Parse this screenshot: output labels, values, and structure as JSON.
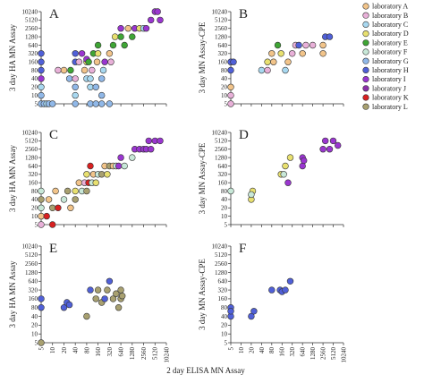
{
  "figure": {
    "x_axis_label": "2 day ELISA MN Assay"
  },
  "axis": {
    "y_ticks": [
      "5",
      "10",
      "20",
      "40",
      "80",
      "160",
      "320",
      "640",
      "1280",
      "2560",
      "5120",
      "10240"
    ],
    "x_ticks": [
      "5",
      "10",
      "20",
      "40",
      "80",
      "160",
      "320",
      "640",
      "1280",
      "2560",
      "5120",
      "10240"
    ]
  },
  "legend": {
    "entries": [
      {
        "label": "laboratory A",
        "color": "#f2c48a"
      },
      {
        "label": "laboratory B",
        "color": "#e8b0d8"
      },
      {
        "label": "laboratory C",
        "color": "#a8d8f0"
      },
      {
        "label": "laboratory D",
        "color": "#e8e070"
      },
      {
        "label": "laboratory E",
        "color": "#3fa535"
      },
      {
        "label": "laboratory F",
        "color": "#c8e8d8"
      },
      {
        "label": "laboratory G",
        "color": "#90b8e8"
      },
      {
        "label": "laboratory H",
        "color": "#5060d8"
      },
      {
        "label": "laboratory I",
        "color": "#9a36d0"
      },
      {
        "label": "laboratory J",
        "color": "#8a2fa8"
      },
      {
        "label": "laboratory K",
        "color": "#d82020"
      },
      {
        "label": "laboratory L",
        "color": "#a8a070"
      }
    ]
  },
  "chart_data": [
    {
      "type": "scatter",
      "panel": "A",
      "ylabel": "3 day HA MN Assay",
      "xlim": [
        "5",
        "10240"
      ],
      "ylim": [
        "5",
        "10240"
      ],
      "scale": "log2",
      "points": [
        {
          "x": 5,
          "y": 5,
          "c": "#90b8e8"
        },
        {
          "x": 5,
          "y": 10,
          "c": "#90b8e8"
        },
        {
          "x": 5,
          "y": 20,
          "c": "#a8d8f0"
        },
        {
          "x": 5,
          "y": 40,
          "c": "#9a36d0"
        },
        {
          "x": 5,
          "y": 80,
          "c": "#5060d8"
        },
        {
          "x": 5,
          "y": 160,
          "c": "#5060d8"
        },
        {
          "x": 5,
          "y": 320,
          "c": "#5060d8"
        },
        {
          "x": 6,
          "y": 5,
          "c": "#90b8e8"
        },
        {
          "x": 7,
          "y": 5,
          "c": "#a8d8f0"
        },
        {
          "x": 8,
          "y": 5,
          "c": "#90b8e8"
        },
        {
          "x": 10,
          "y": 5,
          "c": "#90b8e8"
        },
        {
          "x": 14,
          "y": 80,
          "c": "#e8b0d8"
        },
        {
          "x": 20,
          "y": 80,
          "c": "#f2c48a"
        },
        {
          "x": 28,
          "y": 40,
          "c": "#90b8e8"
        },
        {
          "x": 30,
          "y": 80,
          "c": "#3fa535"
        },
        {
          "x": 40,
          "y": 5,
          "c": "#90b8e8"
        },
        {
          "x": 40,
          "y": 10,
          "c": "#a8d8f0"
        },
        {
          "x": 40,
          "y": 20,
          "c": "#90b8e8"
        },
        {
          "x": 40,
          "y": 40,
          "c": "#e8b0d8"
        },
        {
          "x": 40,
          "y": 160,
          "c": "#5060d8"
        },
        {
          "x": 40,
          "y": 320,
          "c": "#5060d8"
        },
        {
          "x": 50,
          "y": 160,
          "c": "#e8b0d8"
        },
        {
          "x": 60,
          "y": 320,
          "c": "#9a36d0"
        },
        {
          "x": 70,
          "y": 80,
          "c": "#f2c48a"
        },
        {
          "x": 80,
          "y": 40,
          "c": "#a8d8f0"
        },
        {
          "x": 80,
          "y": 160,
          "c": "#e8e070"
        },
        {
          "x": 80,
          "y": 200,
          "c": "#9a36d0"
        },
        {
          "x": 90,
          "y": 160,
          "c": "#3fa535"
        },
        {
          "x": 100,
          "y": 5,
          "c": "#90b8e8"
        },
        {
          "x": 100,
          "y": 20,
          "c": "#a8d8f0"
        },
        {
          "x": 100,
          "y": 40,
          "c": "#a8d8f0"
        },
        {
          "x": 110,
          "y": 80,
          "c": "#e8b0d8"
        },
        {
          "x": 120,
          "y": 320,
          "c": "#3fa535"
        },
        {
          "x": 140,
          "y": 5,
          "c": "#90b8e8"
        },
        {
          "x": 140,
          "y": 20,
          "c": "#90b8e8"
        },
        {
          "x": 150,
          "y": 160,
          "c": "#f2c48a"
        },
        {
          "x": 160,
          "y": 320,
          "c": "#e8e070"
        },
        {
          "x": 160,
          "y": 640,
          "c": "#3fa535"
        },
        {
          "x": 200,
          "y": 5,
          "c": "#90b8e8"
        },
        {
          "x": 200,
          "y": 10,
          "c": "#90b8e8"
        },
        {
          "x": 200,
          "y": 40,
          "c": "#90b8e8"
        },
        {
          "x": 220,
          "y": 80,
          "c": "#a8d8f0"
        },
        {
          "x": 240,
          "y": 160,
          "c": "#9a36d0"
        },
        {
          "x": 320,
          "y": 5,
          "c": "#90b8e8"
        },
        {
          "x": 320,
          "y": 320,
          "c": "#f2c48a"
        },
        {
          "x": 350,
          "y": 160,
          "c": "#e8b0d8"
        },
        {
          "x": 400,
          "y": 640,
          "c": "#3fa535"
        },
        {
          "x": 450,
          "y": 1280,
          "c": "#e8e070"
        },
        {
          "x": 640,
          "y": 1280,
          "c": "#3fa535"
        },
        {
          "x": 640,
          "y": 2560,
          "c": "#9a36d0"
        },
        {
          "x": 800,
          "y": 640,
          "c": "#3fa535"
        },
        {
          "x": 1000,
          "y": 2560,
          "c": "#f2c48a"
        },
        {
          "x": 1280,
          "y": 1280,
          "c": "#3fa535"
        },
        {
          "x": 1500,
          "y": 2560,
          "c": "#9a36d0"
        },
        {
          "x": 2000,
          "y": 2560,
          "c": "#e8e070"
        },
        {
          "x": 2560,
          "y": 2560,
          "c": "#a8d8f0"
        },
        {
          "x": 3000,
          "y": 2560,
          "c": "#9a36d0"
        },
        {
          "x": 4000,
          "y": 5120,
          "c": "#9a36d0"
        },
        {
          "x": 5120,
          "y": 10240,
          "c": "#9a36d0"
        },
        {
          "x": 6000,
          "y": 10240,
          "c": "#9a36d0"
        },
        {
          "x": 7000,
          "y": 5120,
          "c": "#9a36d0"
        }
      ]
    },
    {
      "type": "scatter",
      "panel": "B",
      "ylabel": "3 day MN Assay-CPE",
      "xlim": [
        "5",
        "10240"
      ],
      "ylim": [
        "5",
        "10240"
      ],
      "scale": "log2",
      "points": [
        {
          "x": 5,
          "y": 5,
          "c": "#e8b0d8"
        },
        {
          "x": 5,
          "y": 10,
          "c": "#e8b0d8"
        },
        {
          "x": 5,
          "y": 20,
          "c": "#f2c48a"
        },
        {
          "x": 5,
          "y": 80,
          "c": "#5060d8"
        },
        {
          "x": 5,
          "y": 160,
          "c": "#5060d8"
        },
        {
          "x": 6,
          "y": 160,
          "c": "#5060d8"
        },
        {
          "x": 40,
          "y": 80,
          "c": "#a8d8f0"
        },
        {
          "x": 60,
          "y": 80,
          "c": "#e8b0d8"
        },
        {
          "x": 60,
          "y": 160,
          "c": "#e8e070"
        },
        {
          "x": 80,
          "y": 320,
          "c": "#f2c48a"
        },
        {
          "x": 90,
          "y": 160,
          "c": "#f2c48a"
        },
        {
          "x": 120,
          "y": 640,
          "c": "#3fa535"
        },
        {
          "x": 150,
          "y": 320,
          "c": "#e8e070"
        },
        {
          "x": 200,
          "y": 80,
          "c": "#a8d8f0"
        },
        {
          "x": 240,
          "y": 160,
          "c": "#f2c48a"
        },
        {
          "x": 320,
          "y": 320,
          "c": "#e8b0d8"
        },
        {
          "x": 400,
          "y": 640,
          "c": "#e8b0d8"
        },
        {
          "x": 500,
          "y": 640,
          "c": "#5060d8"
        },
        {
          "x": 640,
          "y": 320,
          "c": "#f2c48a"
        },
        {
          "x": 800,
          "y": 640,
          "c": "#e8b0d8"
        },
        {
          "x": 1280,
          "y": 640,
          "c": "#e8b0d8"
        },
        {
          "x": 2560,
          "y": 320,
          "c": "#f2c48a"
        },
        {
          "x": 2560,
          "y": 640,
          "c": "#f2c48a"
        },
        {
          "x": 3000,
          "y": 1280,
          "c": "#5060d8"
        },
        {
          "x": 4000,
          "y": 1280,
          "c": "#5060d8"
        }
      ]
    },
    {
      "type": "scatter",
      "panel": "C",
      "ylabel": "3 day HA MN Assay",
      "xlim": [
        "5",
        "10240"
      ],
      "ylim": [
        "5",
        "10240"
      ],
      "scale": "log2",
      "points": [
        {
          "x": 5,
          "y": 5,
          "c": "#e8b0d8"
        },
        {
          "x": 5,
          "y": 10,
          "c": "#f2c48a"
        },
        {
          "x": 5,
          "y": 20,
          "c": "#c8e8d8"
        },
        {
          "x": 5,
          "y": 40,
          "c": "#a8a070"
        },
        {
          "x": 5,
          "y": 80,
          "c": "#c8e8d8"
        },
        {
          "x": 7,
          "y": 10,
          "c": "#d82020"
        },
        {
          "x": 8,
          "y": 40,
          "c": "#f2c48a"
        },
        {
          "x": 10,
          "y": 5,
          "c": "#d82020"
        },
        {
          "x": 10,
          "y": 20,
          "c": "#a8a070"
        },
        {
          "x": 12,
          "y": 80,
          "c": "#f2c48a"
        },
        {
          "x": 14,
          "y": 20,
          "c": "#d82020"
        },
        {
          "x": 20,
          "y": 40,
          "c": "#c8e8d8"
        },
        {
          "x": 25,
          "y": 80,
          "c": "#a8a070"
        },
        {
          "x": 30,
          "y": 20,
          "c": "#f2c48a"
        },
        {
          "x": 40,
          "y": 40,
          "c": "#a8a070"
        },
        {
          "x": 40,
          "y": 80,
          "c": "#e8e070"
        },
        {
          "x": 50,
          "y": 160,
          "c": "#f2c48a"
        },
        {
          "x": 60,
          "y": 80,
          "c": "#c8e8d8"
        },
        {
          "x": 70,
          "y": 160,
          "c": "#e8b0d8"
        },
        {
          "x": 80,
          "y": 80,
          "c": "#a8a070"
        },
        {
          "x": 80,
          "y": 320,
          "c": "#e8e070"
        },
        {
          "x": 90,
          "y": 160,
          "c": "#d82020"
        },
        {
          "x": 100,
          "y": 640,
          "c": "#d82020"
        },
        {
          "x": 110,
          "y": 160,
          "c": "#c8e8d8"
        },
        {
          "x": 120,
          "y": 320,
          "c": "#f2c48a"
        },
        {
          "x": 140,
          "y": 160,
          "c": "#e8e070"
        },
        {
          "x": 160,
          "y": 320,
          "c": "#c8e8d8"
        },
        {
          "x": 200,
          "y": 320,
          "c": "#a8a070"
        },
        {
          "x": 240,
          "y": 640,
          "c": "#f2c48a"
        },
        {
          "x": 280,
          "y": 320,
          "c": "#e8e070"
        },
        {
          "x": 320,
          "y": 640,
          "c": "#a8a070"
        },
        {
          "x": 400,
          "y": 640,
          "c": "#f2c48a"
        },
        {
          "x": 480,
          "y": 640,
          "c": "#c8e8d8"
        },
        {
          "x": 560,
          "y": 640,
          "c": "#9a36d0"
        },
        {
          "x": 640,
          "y": 1280,
          "c": "#9a36d0"
        },
        {
          "x": 800,
          "y": 640,
          "c": "#c8e8d8"
        },
        {
          "x": 1280,
          "y": 1280,
          "c": "#c8e8d8"
        },
        {
          "x": 1500,
          "y": 2560,
          "c": "#9a36d0"
        },
        {
          "x": 2000,
          "y": 2560,
          "c": "#9a36d0"
        },
        {
          "x": 2560,
          "y": 2560,
          "c": "#9a36d0"
        },
        {
          "x": 3000,
          "y": 2560,
          "c": "#9a36d0"
        },
        {
          "x": 3500,
          "y": 5120,
          "c": "#9a36d0"
        },
        {
          "x": 4000,
          "y": 2560,
          "c": "#9a36d0"
        },
        {
          "x": 5120,
          "y": 5120,
          "c": "#9a36d0"
        },
        {
          "x": 7000,
          "y": 5120,
          "c": "#9a36d0"
        }
      ]
    },
    {
      "type": "scatter",
      "panel": "D",
      "ylabel": "3 day MN Assay-CPE",
      "xlim": [
        "5",
        "10240"
      ],
      "ylim": [
        "5",
        "10240"
      ],
      "scale": "log2",
      "points": [
        {
          "x": 5,
          "y": 80,
          "c": "#c8e8d8"
        },
        {
          "x": 20,
          "y": 40,
          "c": "#e8e070"
        },
        {
          "x": 22,
          "y": 80,
          "c": "#e8e070"
        },
        {
          "x": 20,
          "y": 60,
          "c": "#c8e8d8"
        },
        {
          "x": 150,
          "y": 320,
          "c": "#e8e070"
        },
        {
          "x": 180,
          "y": 320,
          "c": "#c8e8d8"
        },
        {
          "x": 200,
          "y": 640,
          "c": "#e8e070"
        },
        {
          "x": 240,
          "y": 160,
          "c": "#9a36d0"
        },
        {
          "x": 280,
          "y": 1280,
          "c": "#e8e070"
        },
        {
          "x": 640,
          "y": 640,
          "c": "#9a36d0"
        },
        {
          "x": 640,
          "y": 1280,
          "c": "#9a36d0"
        },
        {
          "x": 700,
          "y": 1000,
          "c": "#9a36d0"
        },
        {
          "x": 2560,
          "y": 2560,
          "c": "#9a36d0"
        },
        {
          "x": 3000,
          "y": 5120,
          "c": "#9a36d0"
        },
        {
          "x": 4000,
          "y": 2560,
          "c": "#9a36d0"
        },
        {
          "x": 5120,
          "y": 5120,
          "c": "#9a36d0"
        },
        {
          "x": 7000,
          "y": 3500,
          "c": "#9a36d0"
        }
      ]
    },
    {
      "type": "scatter",
      "panel": "E",
      "ylabel": "3 day HA MN Assay",
      "xlim": [
        "5",
        "10240"
      ],
      "ylim": [
        "5",
        "10240"
      ],
      "scale": "log2",
      "points": [
        {
          "x": 5,
          "y": 5,
          "c": "#a8a070"
        },
        {
          "x": 5,
          "y": 80,
          "c": "#5060d8"
        },
        {
          "x": 5,
          "y": 160,
          "c": "#5060d8"
        },
        {
          "x": 20,
          "y": 80,
          "c": "#5060d8"
        },
        {
          "x": 24,
          "y": 120,
          "c": "#5060d8"
        },
        {
          "x": 28,
          "y": 100,
          "c": "#5060d8"
        },
        {
          "x": 80,
          "y": 40,
          "c": "#a8a070"
        },
        {
          "x": 100,
          "y": 320,
          "c": "#5060d8"
        },
        {
          "x": 140,
          "y": 160,
          "c": "#a8a070"
        },
        {
          "x": 160,
          "y": 320,
          "c": "#a8a070"
        },
        {
          "x": 200,
          "y": 120,
          "c": "#a8a070"
        },
        {
          "x": 240,
          "y": 160,
          "c": "#5060d8"
        },
        {
          "x": 280,
          "y": 320,
          "c": "#a8a070"
        },
        {
          "x": 320,
          "y": 640,
          "c": "#5060d8"
        },
        {
          "x": 400,
          "y": 160,
          "c": "#a8a070"
        },
        {
          "x": 480,
          "y": 240,
          "c": "#a8a070"
        },
        {
          "x": 560,
          "y": 80,
          "c": "#a8a070"
        },
        {
          "x": 640,
          "y": 160,
          "c": "#a8a070"
        },
        {
          "x": 640,
          "y": 320,
          "c": "#a8a070"
        },
        {
          "x": 700,
          "y": 200,
          "c": "#a8a070"
        }
      ]
    },
    {
      "type": "scatter",
      "panel": "F",
      "ylabel": "3 day MN Assay-CPE",
      "xlim": [
        "5",
        "10240"
      ],
      "ylim": [
        "5",
        "10240"
      ],
      "scale": "log2",
      "points": [
        {
          "x": 5,
          "y": 40,
          "c": "#5060d8"
        },
        {
          "x": 5,
          "y": 80,
          "c": "#5060d8"
        },
        {
          "x": 5,
          "y": 60,
          "c": "#5060d8"
        },
        {
          "x": 20,
          "y": 40,
          "c": "#5060d8"
        },
        {
          "x": 24,
          "y": 60,
          "c": "#5060d8"
        },
        {
          "x": 80,
          "y": 320,
          "c": "#5060d8"
        },
        {
          "x": 140,
          "y": 320,
          "c": "#5060d8"
        },
        {
          "x": 160,
          "y": 280,
          "c": "#5060d8"
        },
        {
          "x": 200,
          "y": 320,
          "c": "#5060d8"
        },
        {
          "x": 280,
          "y": 640,
          "c": "#5060d8"
        }
      ]
    }
  ]
}
